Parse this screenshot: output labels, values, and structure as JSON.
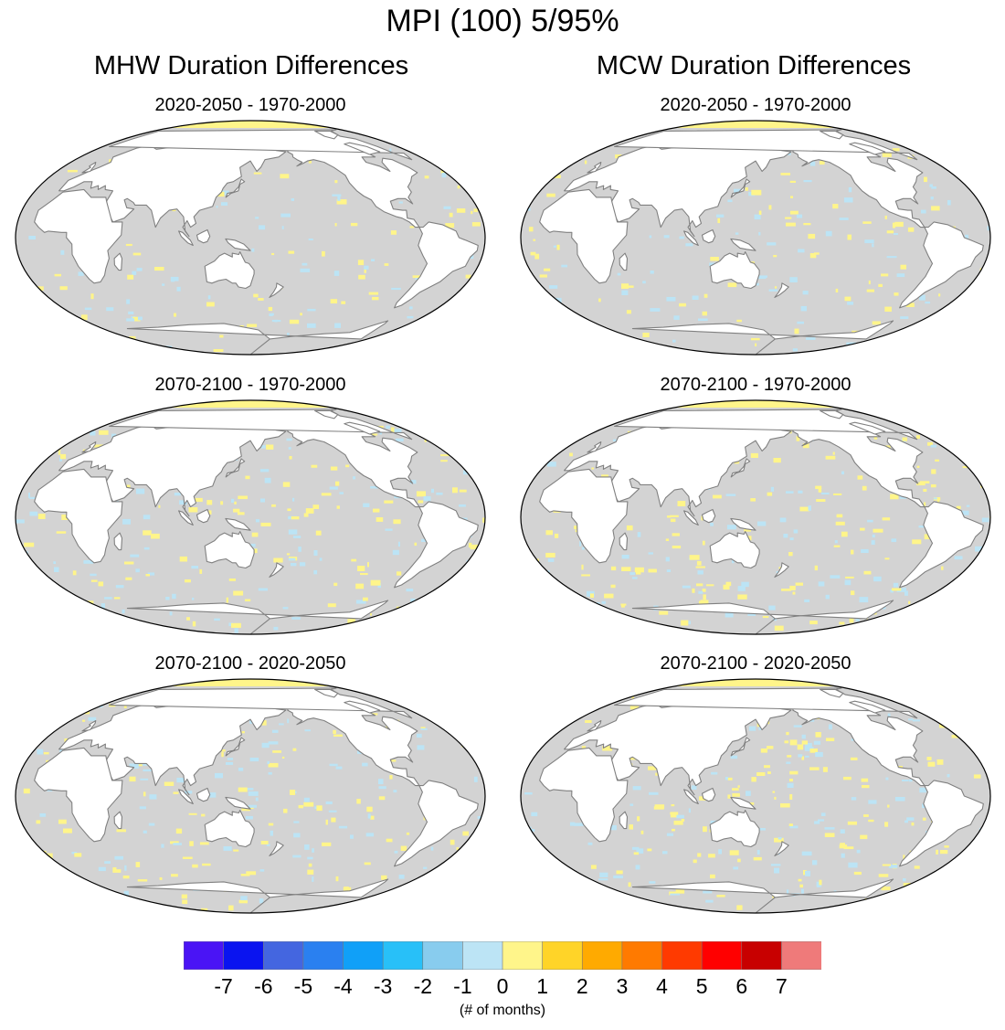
{
  "figure": {
    "title": "MPI (100) 5/95%",
    "columns": [
      {
        "title": "MHW Duration Differences"
      },
      {
        "title": "MCW Duration Differences"
      }
    ],
    "panels": [
      {
        "column": 0,
        "row": 0,
        "subtitle": "2020-2050 - 1970-2000"
      },
      {
        "column": 1,
        "row": 0,
        "subtitle": "2020-2050 - 1970-2000"
      },
      {
        "column": 0,
        "row": 1,
        "subtitle": "2070-2100 - 1970-2000"
      },
      {
        "column": 1,
        "row": 1,
        "subtitle": "2070-2100 - 1970-2000"
      },
      {
        "column": 0,
        "row": 2,
        "subtitle": "2070-2100 - 2020-2050"
      },
      {
        "column": 1,
        "row": 2,
        "subtitle": "2070-2100 - 2020-2050"
      }
    ]
  },
  "colorbar": {
    "units": "(# of months)",
    "tick_labels": [
      "-7",
      "-6",
      "-5",
      "-4",
      "-3",
      "-2",
      "-1",
      "0",
      "1",
      "2",
      "3",
      "4",
      "5",
      "6",
      "7"
    ],
    "colors": [
      "#4a14f5",
      "#0a14f0",
      "#4466e0",
      "#2a80f0",
      "#10a0f8",
      "#28c0f8",
      "#88ccee",
      "#bce4f5",
      "#fff58a",
      "#ffd428",
      "#ffaa00",
      "#ff7a00",
      "#ff3a00",
      "#ff0000",
      "#c80000",
      "#ef7a7a"
    ]
  },
  "map_colors": {
    "ocean": "#d3d3d3",
    "land": "#ffffff",
    "coast": "#808080",
    "positive": "#fff58a",
    "negative": "#bce4f5"
  }
}
